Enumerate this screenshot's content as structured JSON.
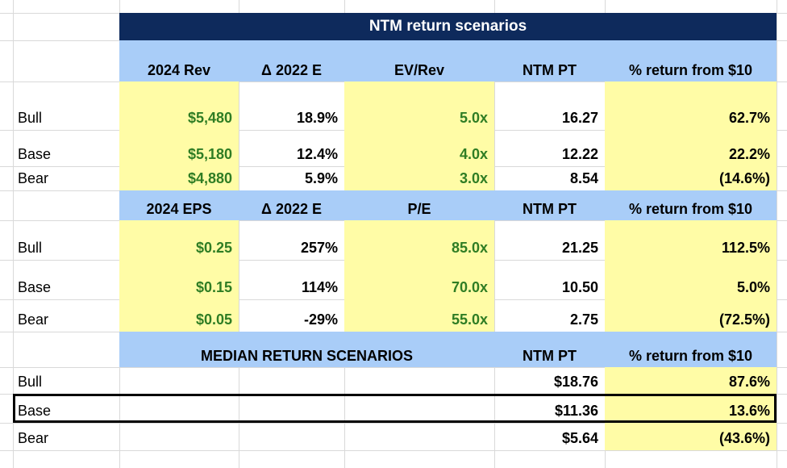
{
  "title": "NTM return scenarios",
  "rev_table": {
    "headers": [
      "2024 Rev",
      "Δ 2022 E",
      "EV/Rev",
      "NTM PT",
      "% return from $10"
    ],
    "rows": [
      {
        "label": "Bull",
        "cells": [
          "$5,480",
          "18.9%",
          "5.0x",
          "16.27",
          "62.7%"
        ]
      },
      {
        "label": "Base",
        "cells": [
          "$5,180",
          "12.4%",
          "4.0x",
          "12.22",
          "22.2%"
        ]
      },
      {
        "label": "Bear",
        "cells": [
          "$4,880",
          "5.9%",
          "3.0x",
          "8.54",
          "(14.6%)"
        ]
      }
    ]
  },
  "eps_table": {
    "headers": [
      "2024 EPS",
      "Δ 2022 E",
      "P/E",
      "NTM PT",
      "% return from $10"
    ],
    "rows": [
      {
        "label": "Bull",
        "cells": [
          "$0.25",
          "257%",
          "85.0x",
          "21.25",
          "112.5%"
        ]
      },
      {
        "label": "Base",
        "cells": [
          "$0.15",
          "114%",
          "70.0x",
          "10.50",
          "5.0%"
        ]
      },
      {
        "label": "Bear",
        "cells": [
          "$0.05",
          "-29%",
          "55.0x",
          "2.75",
          "(72.5%)"
        ]
      }
    ]
  },
  "median_table": {
    "header_label": "MEDIAN RETURN SCENARIOS",
    "header_pt": "NTM PT",
    "header_return": "% return from $10",
    "rows": [
      {
        "label": "Bull",
        "pt": "$18.76",
        "ret": "87.6%"
      },
      {
        "label": "Base",
        "pt": "$11.36",
        "ret": "13.6%"
      },
      {
        "label": "Bear",
        "pt": "$5.64",
        "ret": "(43.6%)"
      }
    ]
  },
  "colors": {
    "banner": "#0e2a5c",
    "header_fill": "#a9cdf8",
    "highlight_fill": "#fffca6",
    "positive_text": "#2f7d24"
  }
}
